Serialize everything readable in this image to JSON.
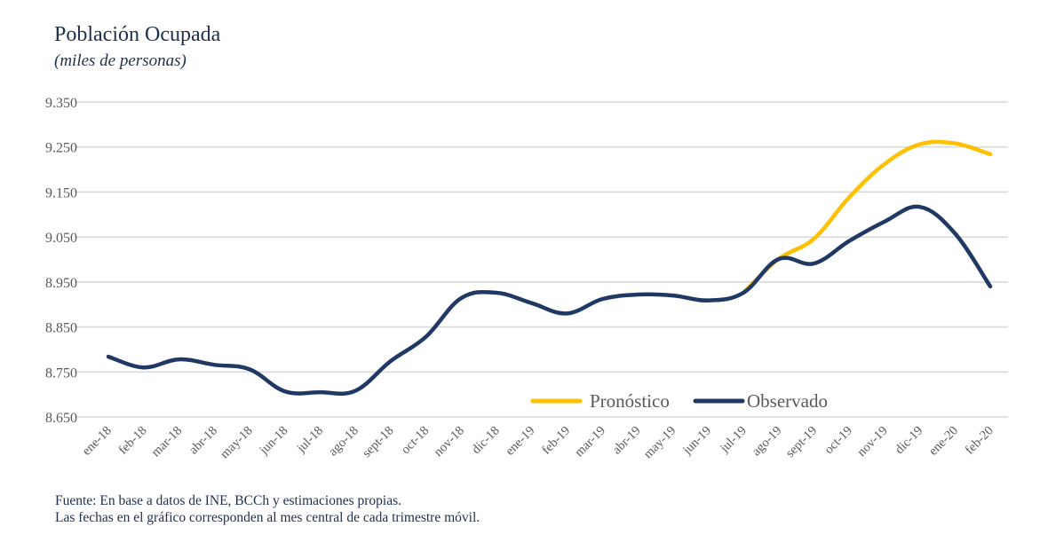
{
  "chart_data": {
    "type": "line",
    "title": "Población Ocupada",
    "subtitle": "(miles de personas)",
    "xlabel": "",
    "ylabel": "",
    "ylim": [
      8650,
      9350
    ],
    "yticks": [
      8650,
      8750,
      8850,
      8950,
      9050,
      9150,
      9250,
      9350
    ],
    "ytick_labels": [
      "8.650",
      "8.750",
      "8.850",
      "8.950",
      "9.050",
      "9.150",
      "9.250",
      "9.350"
    ],
    "grid": true,
    "legend_position": "bottom-right-inside",
    "categories": [
      "ene-18",
      "feb-18",
      "mar-18",
      "abr-18",
      "may-18",
      "jun-18",
      "jul-18",
      "ago-18",
      "sept-18",
      "oct-18",
      "nov-18",
      "dic-18",
      "ene-19",
      "feb-19",
      "mar-19",
      "abr-19",
      "may-19",
      "jun-19",
      "jul-19",
      "ago-19",
      "sept-19",
      "oct-19",
      "nov-19",
      "dic-19",
      "ene-20",
      "feb-20"
    ],
    "series": [
      {
        "name": "Pronóstico",
        "color": "#FFC000",
        "values": [
          null,
          null,
          null,
          null,
          null,
          null,
          null,
          null,
          null,
          null,
          null,
          null,
          null,
          null,
          null,
          null,
          null,
          null,
          8926,
          9001,
          9046,
          9138,
          9212,
          9256,
          9258,
          9234
        ]
      },
      {
        "name": "Observado",
        "color": "#1F3864",
        "values": [
          8784,
          8760,
          8778,
          8766,
          8756,
          8707,
          8705,
          8708,
          8774,
          8828,
          8914,
          8926,
          8903,
          8880,
          8912,
          8922,
          8920,
          8909,
          8926,
          9001,
          8991,
          9041,
          9084,
          9117,
          9058,
          8940
        ]
      }
    ]
  },
  "legend": {
    "items": [
      {
        "label": "Pronóstico",
        "color": "#FFC000"
      },
      {
        "label": "Observado",
        "color": "#1F3864"
      }
    ]
  },
  "footer": {
    "line1": "Fuente: En base a datos de INE, BCCh y estimaciones propias.",
    "line2": "Las fechas en el gráfico corresponden al mes central de cada trimestre móvil."
  }
}
